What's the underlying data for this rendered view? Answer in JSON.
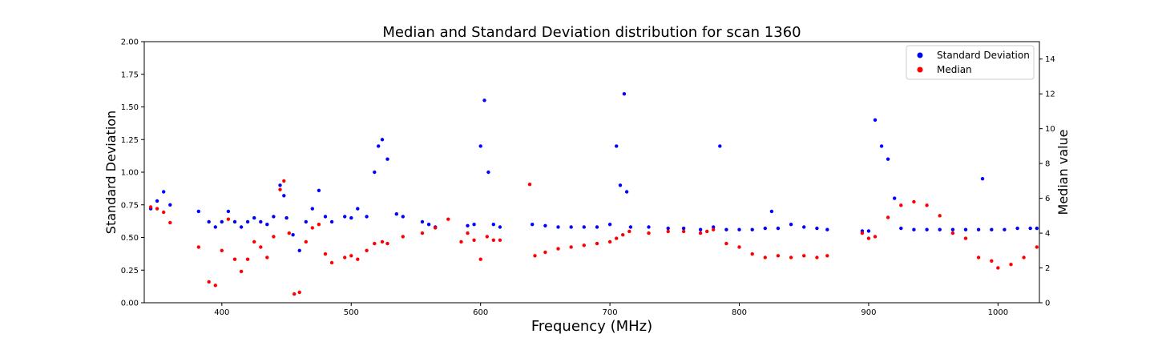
{
  "chart_data": {
    "type": "scatter",
    "title": "Median and Standard Deviation distribution for scan 1360",
    "xlabel": "Frequency (MHz)",
    "ylabel_left": "Standard Deviation",
    "ylabel_right": "Median value",
    "xlim": [
      340,
      1032
    ],
    "ylim_left": [
      0,
      2.0
    ],
    "ylim_right": [
      0,
      15
    ],
    "xticks": [
      400,
      500,
      600,
      700,
      800,
      900,
      1000
    ],
    "yticks_left": [
      0.0,
      0.25,
      0.5,
      0.75,
      1.0,
      1.25,
      1.5,
      1.75,
      2.0
    ],
    "yticks_left_labels": [
      "0.00",
      "0.25",
      "0.50",
      "0.75",
      "1.00",
      "1.25",
      "1.50",
      "1.75",
      "2.00"
    ],
    "yticks_right": [
      0,
      2,
      4,
      6,
      8,
      10,
      12,
      14
    ],
    "grid": false,
    "legend_position": "top-right",
    "series": [
      {
        "name": "Standard Deviation",
        "axis": "left",
        "color": "#0000ff",
        "x": [
          345,
          350,
          355,
          360,
          382,
          390,
          395,
          400,
          405,
          410,
          415,
          420,
          425,
          430,
          435,
          440,
          445,
          448,
          450,
          455,
          460,
          465,
          470,
          475,
          480,
          485,
          495,
          500,
          505,
          512,
          518,
          521,
          524,
          528,
          535,
          540,
          555,
          560,
          565,
          590,
          595,
          600,
          603,
          606,
          610,
          615,
          640,
          650,
          660,
          670,
          680,
          690,
          700,
          705,
          708,
          711,
          713,
          716,
          730,
          745,
          757,
          770,
          780,
          785,
          790,
          800,
          810,
          820,
          825,
          830,
          840,
          850,
          860,
          868,
          895,
          900,
          905,
          910,
          915,
          920,
          925,
          935,
          945,
          955,
          965,
          975,
          985,
          988,
          995,
          1005,
          1015,
          1025,
          1030
        ],
        "y": [
          0.72,
          0.78,
          0.85,
          0.75,
          0.7,
          0.62,
          0.58,
          0.62,
          0.7,
          0.62,
          0.58,
          0.62,
          0.65,
          0.62,
          0.6,
          0.66,
          0.9,
          0.82,
          0.65,
          0.52,
          0.4,
          0.62,
          0.72,
          0.86,
          0.66,
          0.62,
          0.66,
          0.65,
          0.72,
          0.66,
          1.0,
          1.2,
          1.25,
          1.1,
          0.68,
          0.66,
          0.62,
          0.6,
          0.58,
          0.59,
          0.6,
          1.2,
          1.55,
          1.0,
          0.6,
          0.58,
          0.6,
          0.59,
          0.58,
          0.58,
          0.58,
          0.58,
          0.6,
          1.2,
          0.9,
          1.6,
          0.85,
          0.58,
          0.58,
          0.57,
          0.57,
          0.56,
          0.58,
          1.2,
          0.56,
          0.56,
          0.56,
          0.57,
          0.7,
          0.57,
          0.6,
          0.58,
          0.57,
          0.56,
          0.55,
          0.55,
          1.4,
          1.2,
          1.1,
          0.8,
          0.57,
          0.56,
          0.56,
          0.56,
          0.56,
          0.56,
          0.56,
          0.95,
          0.56,
          0.56,
          0.57,
          0.57,
          0.57
        ]
      },
      {
        "name": "Median",
        "axis": "right",
        "color": "#ff0000",
        "x": [
          345,
          350,
          355,
          360,
          382,
          390,
          395,
          400,
          405,
          410,
          415,
          420,
          425,
          430,
          435,
          440,
          445,
          448,
          452,
          456,
          460,
          465,
          470,
          475,
          480,
          485,
          495,
          500,
          505,
          512,
          518,
          524,
          528,
          540,
          555,
          565,
          575,
          585,
          590,
          595,
          600,
          605,
          610,
          615,
          638,
          642,
          650,
          660,
          670,
          680,
          690,
          700,
          705,
          710,
          715,
          730,
          745,
          757,
          770,
          775,
          780,
          790,
          800,
          810,
          820,
          830,
          840,
          850,
          860,
          868,
          895,
          900,
          905,
          915,
          925,
          935,
          945,
          955,
          965,
          975,
          985,
          995,
          1000,
          1010,
          1020,
          1030
        ],
        "y": [
          5.5,
          5.4,
          5.2,
          4.6,
          3.2,
          1.2,
          1.0,
          3.0,
          4.8,
          2.5,
          1.8,
          2.5,
          3.5,
          3.2,
          2.6,
          3.8,
          6.5,
          7.0,
          4.0,
          0.5,
          0.6,
          3.5,
          4.3,
          4.5,
          2.8,
          2.3,
          2.6,
          2.7,
          2.5,
          3.0,
          3.4,
          3.5,
          3.4,
          3.8,
          4.0,
          4.3,
          4.8,
          3.5,
          4.0,
          3.6,
          2.5,
          3.8,
          3.6,
          3.6,
          6.8,
          2.7,
          2.9,
          3.1,
          3.2,
          3.3,
          3.4,
          3.5,
          3.7,
          3.9,
          4.1,
          4.0,
          4.1,
          4.1,
          4.0,
          4.1,
          4.2,
          3.4,
          3.2,
          2.8,
          2.6,
          2.7,
          2.6,
          2.7,
          2.6,
          2.7,
          4.0,
          3.7,
          3.8,
          4.9,
          5.6,
          5.8,
          5.6,
          5.0,
          4.0,
          3.7,
          2.6,
          2.4,
          2.0,
          2.2,
          2.6,
          3.2
        ]
      }
    ]
  }
}
